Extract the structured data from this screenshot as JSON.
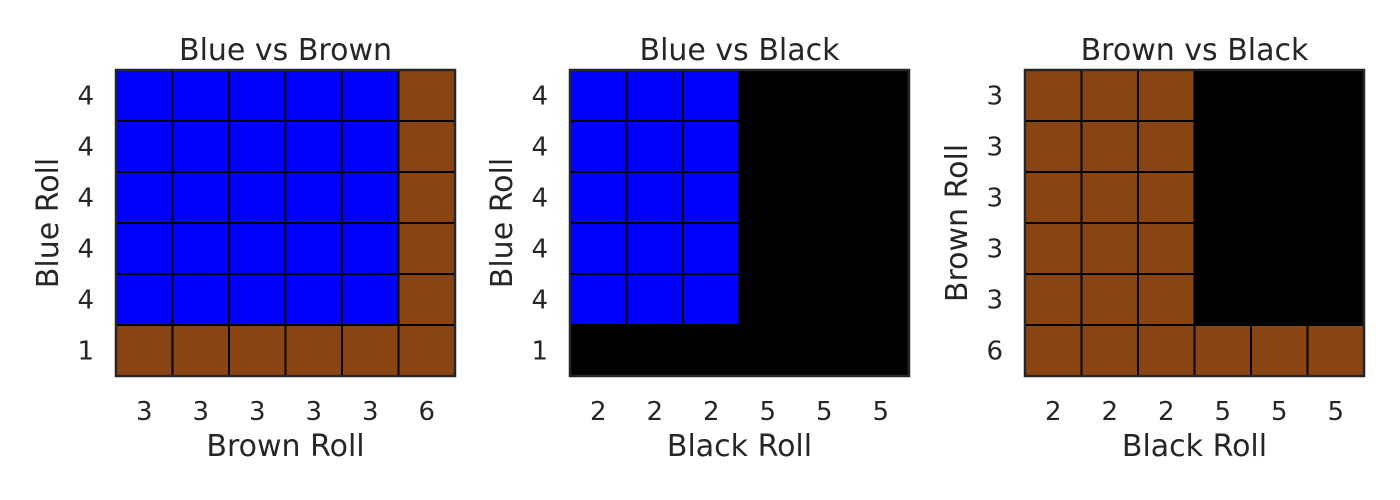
{
  "colors": {
    "Blue": "#0000ff",
    "Brown": "#8b4513",
    "Black": "#000000",
    "cell_border": "#000000",
    "frame": "#262626",
    "text": "#262626"
  },
  "chart_data": [
    {
      "type": "heatmap",
      "title": "Blue vs Brown",
      "xlabel": "Brown Roll",
      "ylabel": "Blue Roll",
      "x_ticks": [
        "3",
        "3",
        "3",
        "3",
        "3",
        "6"
      ],
      "y_ticks": [
        "4",
        "4",
        "4",
        "4",
        "4",
        "1"
      ],
      "winners": [
        [
          "Blue",
          "Blue",
          "Blue",
          "Blue",
          "Blue",
          "Brown"
        ],
        [
          "Blue",
          "Blue",
          "Blue",
          "Blue",
          "Blue",
          "Brown"
        ],
        [
          "Blue",
          "Blue",
          "Blue",
          "Blue",
          "Blue",
          "Brown"
        ],
        [
          "Blue",
          "Blue",
          "Blue",
          "Blue",
          "Blue",
          "Brown"
        ],
        [
          "Blue",
          "Blue",
          "Blue",
          "Blue",
          "Blue",
          "Brown"
        ],
        [
          "Brown",
          "Brown",
          "Brown",
          "Brown",
          "Brown",
          "Brown"
        ]
      ],
      "grid": true
    },
    {
      "type": "heatmap",
      "title": "Blue vs Black",
      "xlabel": "Black Roll",
      "ylabel": "Blue Roll",
      "x_ticks": [
        "2",
        "2",
        "2",
        "5",
        "5",
        "5"
      ],
      "y_ticks": [
        "4",
        "4",
        "4",
        "4",
        "4",
        "1"
      ],
      "winners": [
        [
          "Blue",
          "Blue",
          "Blue",
          "Black",
          "Black",
          "Black"
        ],
        [
          "Blue",
          "Blue",
          "Blue",
          "Black",
          "Black",
          "Black"
        ],
        [
          "Blue",
          "Blue",
          "Blue",
          "Black",
          "Black",
          "Black"
        ],
        [
          "Blue",
          "Blue",
          "Blue",
          "Black",
          "Black",
          "Black"
        ],
        [
          "Blue",
          "Blue",
          "Blue",
          "Black",
          "Black",
          "Black"
        ],
        [
          "Black",
          "Black",
          "Black",
          "Black",
          "Black",
          "Black"
        ]
      ],
      "grid": true
    },
    {
      "type": "heatmap",
      "title": "Brown vs Black",
      "xlabel": "Black Roll",
      "ylabel": "Brown Roll",
      "x_ticks": [
        "2",
        "2",
        "2",
        "5",
        "5",
        "5"
      ],
      "y_ticks": [
        "3",
        "3",
        "3",
        "3",
        "3",
        "6"
      ],
      "winners": [
        [
          "Brown",
          "Brown",
          "Brown",
          "Black",
          "Black",
          "Black"
        ],
        [
          "Brown",
          "Brown",
          "Brown",
          "Black",
          "Black",
          "Black"
        ],
        [
          "Brown",
          "Brown",
          "Brown",
          "Black",
          "Black",
          "Black"
        ],
        [
          "Brown",
          "Brown",
          "Brown",
          "Black",
          "Black",
          "Black"
        ],
        [
          "Brown",
          "Brown",
          "Brown",
          "Black",
          "Black",
          "Black"
        ],
        [
          "Brown",
          "Brown",
          "Brown",
          "Brown",
          "Brown",
          "Brown"
        ]
      ],
      "grid": true
    }
  ]
}
